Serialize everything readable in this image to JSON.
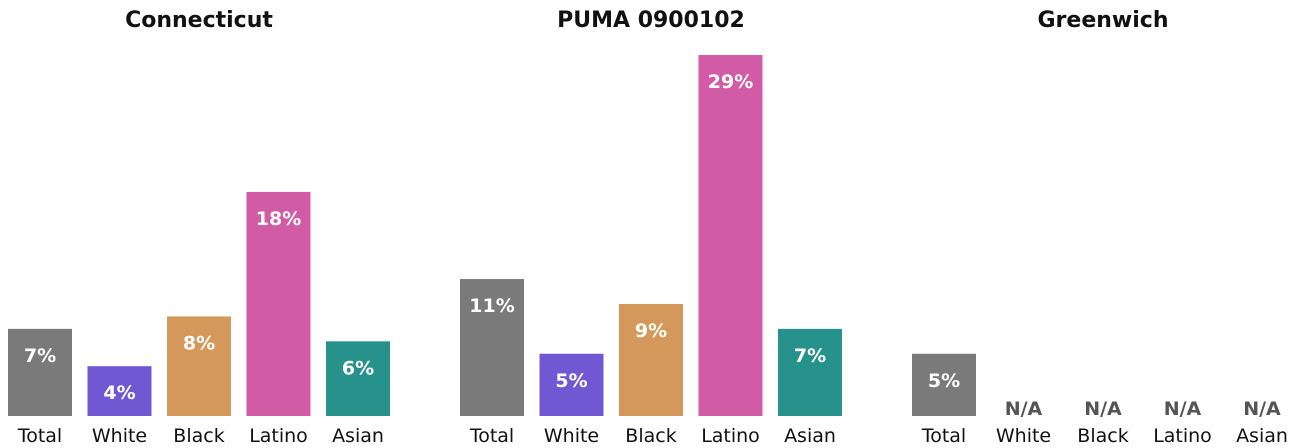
{
  "chart_data": [
    {
      "type": "bar",
      "title": "Connecticut",
      "categories": [
        "Total",
        "White",
        "Black",
        "Latino",
        "Asian"
      ],
      "values": [
        7,
        4,
        8,
        18,
        6
      ],
      "labels": [
        "7%",
        "4%",
        "8%",
        "18%",
        "6%"
      ],
      "ylim": [
        0,
        29
      ]
    },
    {
      "type": "bar",
      "title": "PUMA 0900102",
      "categories": [
        "Total",
        "White",
        "Black",
        "Latino",
        "Asian"
      ],
      "values": [
        11,
        5,
        9,
        29,
        7
      ],
      "labels": [
        "11%",
        "5%",
        "9%",
        "29%",
        "7%"
      ],
      "ylim": [
        0,
        29
      ]
    },
    {
      "type": "bar",
      "title": "Greenwich",
      "categories": [
        "Total",
        "White",
        "Black",
        "Latino",
        "Asian"
      ],
      "values": [
        5,
        null,
        null,
        null,
        null
      ],
      "labels": [
        "5%",
        "N/A",
        "N/A",
        "N/A",
        "N/A"
      ],
      "ylim": [
        0,
        29
      ]
    }
  ],
  "colors": {
    "Total": "#7a7a7a",
    "White": "#7058d3",
    "Black": "#d4995a",
    "Latino": "#d25ba5",
    "Asian": "#26928b",
    "na_text": "#555555",
    "title_text": "#111111",
    "tick_text": "#111111"
  }
}
